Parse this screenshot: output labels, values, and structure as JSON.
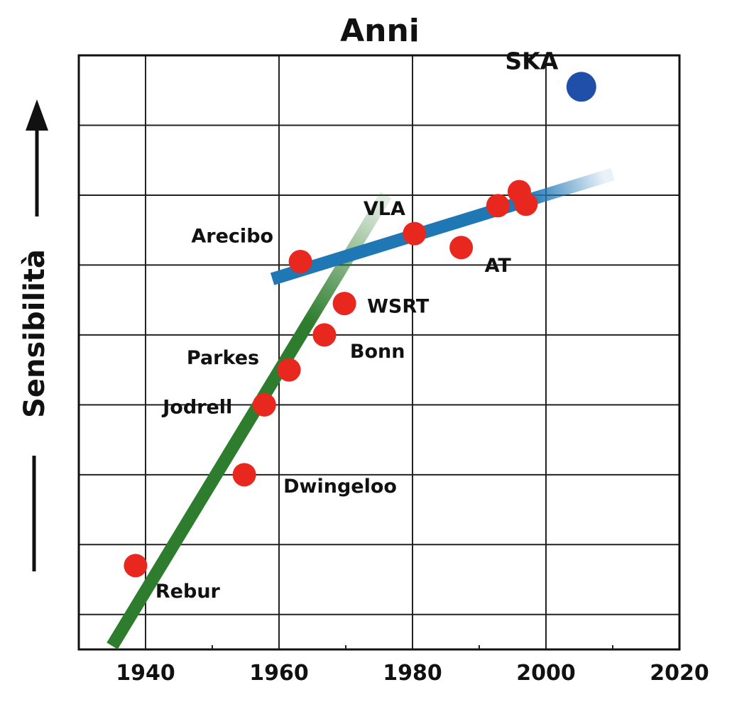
{
  "chart_data": {
    "type": "scatter",
    "title": "Anni",
    "ylabel": "Sensibilità",
    "xlabel": "",
    "x_ticks": [
      1940,
      1960,
      1980,
      2000,
      2020
    ],
    "xlim": [
      1930,
      2020
    ],
    "ylim": [
      0,
      8.5
    ],
    "y_gridlines": [
      0.5,
      1.5,
      2.5,
      3.5,
      4.5,
      5.5,
      6.5,
      7.5
    ],
    "grid": true,
    "points": [
      {
        "label": "Rebur",
        "x": 1938.5,
        "y": 1.2,
        "color": "#e8281e"
      },
      {
        "label": "Dwingeloo",
        "x": 1954.8,
        "y": 2.5,
        "color": "#e8281e"
      },
      {
        "label": "Jodrell",
        "x": 1957.8,
        "y": 3.5,
        "color": "#e8281e"
      },
      {
        "label": "Parkes",
        "x": 1961.5,
        "y": 4.0,
        "color": "#e8281e"
      },
      {
        "label": "Bonn",
        "x": 1966.8,
        "y": 4.5,
        "color": "#e8281e"
      },
      {
        "label": "WSRT",
        "x": 1969.8,
        "y": 4.95,
        "color": "#e8281e"
      },
      {
        "label": "Arecibo",
        "x": 1963.2,
        "y": 5.55,
        "color": "#e8281e"
      },
      {
        "label": "",
        "x": 1980.3,
        "y": 5.95,
        "color": "#e8281e"
      },
      {
        "label": "AT",
        "x": 1987.3,
        "y": 5.75,
        "color": "#e8281e"
      },
      {
        "label": "",
        "x": 1992.8,
        "y": 6.35,
        "color": "#e8281e"
      },
      {
        "label": "",
        "x": 1996.0,
        "y": 6.55,
        "color": "#e8281e"
      },
      {
        "label": "",
        "x": 1997.0,
        "y": 6.37,
        "color": "#e8281e"
      },
      {
        "label": "SKA",
        "x": 2005.3,
        "y": 8.05,
        "color": "#1f4fa8"
      }
    ],
    "trend_lines": [
      {
        "label": "VLA",
        "color": "#2e7d2e",
        "from": [
          1935,
          0.05
        ],
        "to": [
          1976,
          6.5
        ]
      },
      {
        "label": "",
        "color": "#1f78b4",
        "from": [
          1959,
          5.3
        ],
        "to": [
          2010,
          6.8
        ]
      }
    ]
  }
}
